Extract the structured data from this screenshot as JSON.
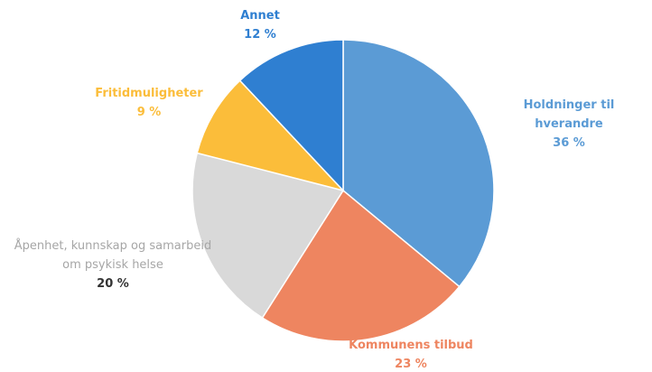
{
  "chart_data": {
    "type": "pie",
    "categories": [
      "Holdninger til hverandre",
      "Kommunens tilbud",
      "Åpenhet, kunnskap og samarbeid om psykisk helse",
      "Fritidmuligheter",
      "Annet"
    ],
    "values": [
      36,
      23,
      20,
      9,
      12
    ],
    "value_labels": [
      "36 %",
      "23 %",
      "20 %",
      "9 %",
      "12 %"
    ],
    "colors": [
      "#5b9bd5",
      "#ee8560",
      "#d9d9d9",
      "#fbbd3a",
      "#2f7fd1"
    ],
    "label_colors": [
      "#5b9bd5",
      "#ee8560",
      "#a6a6a6",
      "#fbbd3a",
      "#2f7fd1"
    ]
  }
}
